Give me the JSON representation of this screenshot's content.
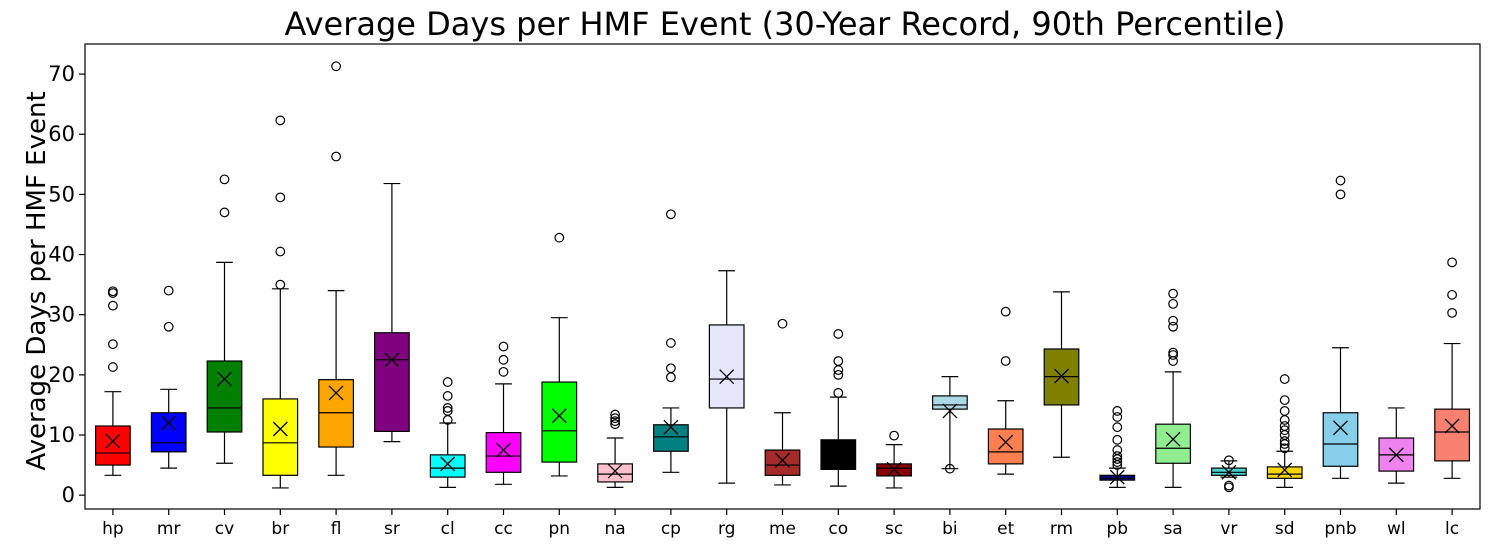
{
  "chart_data": {
    "type": "box",
    "title": "Average Days per HMF Event (30-Year Record, 90th Percentile)",
    "xlabel": "",
    "ylabel": "Average Days per HMF Event",
    "ylim": [
      -2.3,
      75
    ],
    "yticks": [
      0,
      10,
      20,
      30,
      40,
      50,
      60,
      70
    ],
    "grid": false,
    "categories": [
      "hp",
      "mr",
      "cv",
      "br",
      "fl",
      "sr",
      "cl",
      "cc",
      "pn",
      "na",
      "cp",
      "rg",
      "me",
      "co",
      "sc",
      "bi",
      "et",
      "rm",
      "pb",
      "sa",
      "vr",
      "sd",
      "pnb",
      "wl",
      "lc"
    ],
    "boxes": [
      {
        "label": "hp",
        "color": "#ff0000",
        "whisker_low": 3.3,
        "q1": 5.0,
        "median": 7.0,
        "q3": 11.5,
        "whisker_high": 17.2,
        "mean": 9.0,
        "outliers": [
          21.3,
          25.1,
          31.5,
          33.6,
          33.9
        ]
      },
      {
        "label": "mr",
        "color": "#0000ff",
        "whisker_low": 4.5,
        "q1": 7.2,
        "median": 8.7,
        "q3": 13.7,
        "whisker_high": 17.6,
        "mean": 12.0,
        "outliers": [
          28.0,
          34.0
        ]
      },
      {
        "label": "cv",
        "color": "#008000",
        "whisker_low": 5.3,
        "q1": 10.5,
        "median": 14.5,
        "q3": 22.3,
        "whisker_high": 38.7,
        "mean": 19.3,
        "outliers": [
          47.0,
          52.5
        ]
      },
      {
        "label": "br",
        "color": "#ffff00",
        "whisker_low": 1.2,
        "q1": 3.3,
        "median": 8.7,
        "q3": 16.0,
        "whisker_high": 34.3,
        "mean": 11.0,
        "outliers": [
          35.0,
          40.5,
          49.5,
          62.3
        ]
      },
      {
        "label": "fl",
        "color": "#ffa500",
        "whisker_low": 3.3,
        "q1": 8.0,
        "median": 13.7,
        "q3": 19.2,
        "whisker_high": 34.0,
        "mean": 17.0,
        "outliers": [
          56.3,
          71.3
        ]
      },
      {
        "label": "sr",
        "color": "#800080",
        "whisker_low": 8.9,
        "q1": 10.6,
        "median": 22.5,
        "q3": 27.0,
        "whisker_high": 51.8,
        "mean": 22.5,
        "outliers": []
      },
      {
        "label": "cl",
        "color": "#00ffff",
        "whisker_low": 1.3,
        "q1": 3.0,
        "median": 4.5,
        "q3": 6.7,
        "whisker_high": 12.0,
        "mean": 5.2,
        "outliers": [
          12.5,
          14.0,
          14.5,
          16.5,
          18.8
        ]
      },
      {
        "label": "cc",
        "color": "#ff00ff",
        "whisker_low": 1.8,
        "q1": 3.8,
        "median": 6.5,
        "q3": 10.4,
        "whisker_high": 18.5,
        "mean": 7.5,
        "outliers": [
          20.5,
          22.5,
          24.7
        ]
      },
      {
        "label": "pn",
        "color": "#00ff00",
        "whisker_low": 3.2,
        "q1": 5.5,
        "median": 10.7,
        "q3": 18.8,
        "whisker_high": 29.5,
        "mean": 13.2,
        "outliers": [
          42.8
        ]
      },
      {
        "label": "na",
        "color": "#ffc0cb",
        "whisker_low": 1.3,
        "q1": 2.2,
        "median": 3.5,
        "q3": 5.2,
        "whisker_high": 9.5,
        "mean": 4.0,
        "outliers": [
          11.8,
          12.3,
          12.8,
          13.4
        ]
      },
      {
        "label": "cp",
        "color": "#008080",
        "whisker_low": 3.8,
        "q1": 7.3,
        "median": 9.7,
        "q3": 11.7,
        "whisker_high": 14.5,
        "mean": 11.3,
        "outliers": [
          19.6,
          21.1,
          25.3,
          46.7
        ]
      },
      {
        "label": "rg",
        "color": "#e6e6fa",
        "whisker_low": 2.0,
        "q1": 14.5,
        "median": 19.3,
        "q3": 28.3,
        "whisker_high": 37.3,
        "mean": 19.7,
        "outliers": []
      },
      {
        "label": "me",
        "color": "#a52a2a",
        "whisker_low": 1.7,
        "q1": 3.3,
        "median": 5.0,
        "q3": 7.5,
        "whisker_high": 13.7,
        "mean": 5.8,
        "outliers": [
          28.5
        ]
      },
      {
        "label": "co",
        "color": "#000000",
        "whisker_low": 1.5,
        "q1": 4.3,
        "median": 4.3,
        "q3": 9.2,
        "whisker_high": 16.3,
        "mean": 7.0,
        "outliers": [
          17.0,
          20.0,
          20.8,
          22.3,
          26.8
        ]
      },
      {
        "label": "sc",
        "color": "#8b0000",
        "whisker_low": 1.2,
        "q1": 3.2,
        "median": 4.5,
        "q3": 5.2,
        "whisker_high": 8.4,
        "mean": 4.3,
        "outliers": [
          9.9
        ]
      },
      {
        "label": "bi",
        "color": "#add8e6",
        "whisker_low": 4.4,
        "q1": 14.3,
        "median": 15.0,
        "q3": 16.5,
        "whisker_high": 19.7,
        "mean": 14.0,
        "outliers": [
          4.4
        ]
      },
      {
        "label": "et",
        "color": "#ff7f50",
        "whisker_low": 3.5,
        "q1": 5.2,
        "median": 7.2,
        "q3": 11.0,
        "whisker_high": 15.7,
        "mean": 8.8,
        "outliers": [
          22.3,
          30.5
        ]
      },
      {
        "label": "rm",
        "color": "#808000",
        "whisker_low": 6.3,
        "q1": 15.0,
        "median": 19.7,
        "q3": 24.3,
        "whisker_high": 33.8,
        "mean": 19.8,
        "outliers": []
      },
      {
        "label": "pb",
        "color": "#000080",
        "whisker_low": 1.3,
        "q1": 2.5,
        "median": 2.8,
        "q3": 3.3,
        "whisker_high": 4.5,
        "mean": 3.0,
        "outliers": [
          5.0,
          5.5,
          6.0,
          6.5,
          7.5,
          9.2,
          11.3,
          13.0,
          14.0
        ]
      },
      {
        "label": "sa",
        "color": "#90ee90",
        "whisker_low": 1.3,
        "q1": 5.3,
        "median": 7.8,
        "q3": 11.8,
        "whisker_high": 20.5,
        "mean": 9.3,
        "outliers": [
          22.3,
          23.3,
          23.7,
          28.0,
          29.0,
          31.8,
          33.5
        ]
      },
      {
        "label": "vr",
        "color": "#48d1cc",
        "whisker_low": 3.0,
        "q1": 3.3,
        "median": 3.8,
        "q3": 4.5,
        "whisker_high": 5.7,
        "mean": 3.8,
        "outliers": [
          1.3,
          1.6,
          5.8
        ]
      },
      {
        "label": "sd",
        "color": "#ffd700",
        "whisker_low": 1.3,
        "q1": 2.8,
        "median": 3.5,
        "q3": 4.7,
        "whisker_high": 7.3,
        "mean": 4.2,
        "outliers": [
          7.8,
          8.5,
          9.0,
          10.0,
          10.8,
          11.5,
          12.5,
          14.0,
          15.8,
          19.3
        ]
      },
      {
        "label": "pnb",
        "color": "#87ceeb",
        "whisker_low": 2.8,
        "q1": 4.8,
        "median": 8.5,
        "q3": 13.7,
        "whisker_high": 24.5,
        "mean": 11.2,
        "outliers": [
          50.0,
          52.3
        ]
      },
      {
        "label": "wl",
        "color": "#ee82ee",
        "whisker_low": 2.0,
        "q1": 4.0,
        "median": 6.7,
        "q3": 9.5,
        "whisker_high": 14.5,
        "mean": 6.7,
        "outliers": []
      },
      {
        "label": "lc",
        "color": "#fa8072",
        "whisker_low": 2.8,
        "q1": 5.7,
        "median": 10.5,
        "q3": 14.3,
        "whisker_high": 25.2,
        "mean": 11.5,
        "outliers": [
          30.3,
          33.3,
          38.7
        ]
      }
    ]
  }
}
